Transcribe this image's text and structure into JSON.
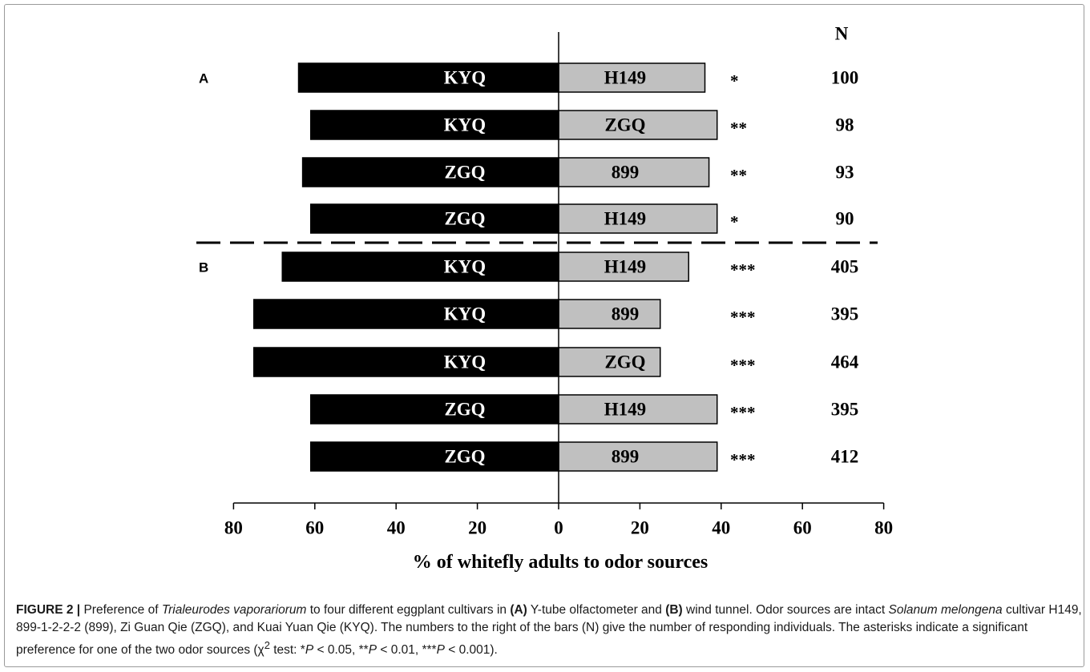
{
  "chart_data": {
    "type": "bar",
    "orientation": "horizontal-diverging",
    "n_header": "N",
    "xlabel": "% of whitefly adults to odor sources",
    "xlim": [
      -80,
      80
    ],
    "xticks": [
      -80,
      -60,
      -40,
      -20,
      0,
      20,
      40,
      60,
      80
    ],
    "xtick_labels": [
      "80",
      "60",
      "40",
      "20",
      "0",
      "20",
      "40",
      "60",
      "80"
    ],
    "panels": [
      {
        "label": "A",
        "rows": [
          {
            "left_label": "KYQ",
            "left_value": 64,
            "right_label": "H149",
            "right_value": 36,
            "sig": "*",
            "n": "100"
          },
          {
            "left_label": "KYQ",
            "left_value": 61,
            "right_label": "ZGQ",
            "right_value": 39,
            "sig": "**",
            "n": "98"
          },
          {
            "left_label": "ZGQ",
            "left_value": 63,
            "right_label": "899",
            "right_value": 37,
            "sig": "**",
            "n": "93"
          },
          {
            "left_label": "ZGQ",
            "left_value": 61,
            "right_label": "H149",
            "right_value": 39,
            "sig": "*",
            "n": "90"
          }
        ]
      },
      {
        "label": "B",
        "rows": [
          {
            "left_label": "KYQ",
            "left_value": 68,
            "right_label": "H149",
            "right_value": 32,
            "sig": "***",
            "n": "405"
          },
          {
            "left_label": "KYQ",
            "left_value": 75,
            "right_label": "899",
            "right_value": 25,
            "sig": "***",
            "n": "395"
          },
          {
            "left_label": "KYQ",
            "left_value": 75,
            "right_label": "ZGQ",
            "right_value": 25,
            "sig": "***",
            "n": "464"
          },
          {
            "left_label": "ZGQ",
            "left_value": 61,
            "right_label": "H149",
            "right_value": 39,
            "sig": "***",
            "n": "395"
          },
          {
            "left_label": "ZGQ",
            "left_value": 61,
            "right_label": "899",
            "right_value": 39,
            "sig": "***",
            "n": "412"
          }
        ]
      }
    ],
    "colors": {
      "left": "#000000",
      "right": "#c0c0c0"
    }
  },
  "caption": {
    "prefix": "FIGURE 2 |",
    "t1": " Preference of ",
    "species": "Trialeurodes vaporariorum",
    "t2": " to four different eggplant cultivars in ",
    "a": "(A)",
    "t3": " Y-tube olfactometer and ",
    "b": "(B)",
    "t4": " wind tunnel. Odor sources are intact ",
    "plant": "Solanum melongena",
    "t5": " cultivar H149, 899-1-2-2-2 (899), Zi Guan Qie (ZGQ), and Kuai Yuan Qie (KYQ). The numbers to the right of the bars (N) give the number of responding individuals. The asterisks indicate a significant preference for one of the two odor sources (χ",
    "sup": "2",
    "t6": " test: *",
    "p1": "P",
    "t7": " < 0.05, **",
    "p2": "P",
    "t8": " < 0.01, ***",
    "p3": "P",
    "t9": " < 0.001)."
  }
}
